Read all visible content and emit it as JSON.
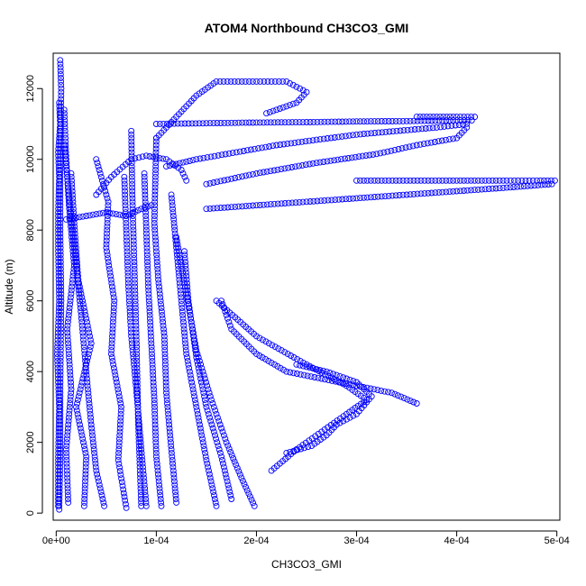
{
  "chart_data": {
    "type": "scatter",
    "title": "ATOM4 Northbound CH3CO3_GMI",
    "xlabel": "CH3CO3_GMI",
    "ylabel": "Altitude (m)",
    "xlim": [
      -3e-06,
      0.000503
    ],
    "ylim": [
      -200,
      13000
    ],
    "xticks": [
      0,
      0.0001,
      0.0002,
      0.0003,
      0.0004,
      0.0005
    ],
    "xtick_labels": [
      "0e+00",
      "1e-04",
      "2e-04",
      "3e-04",
      "4e-04",
      "5e-04"
    ],
    "yticks": [
      0,
      2000,
      4000,
      6000,
      8000,
      10000,
      12000
    ],
    "ytick_labels": [
      "0",
      "2000",
      "4000",
      "6000",
      "8000",
      "10000",
      "12000"
    ],
    "marker": "open-circle",
    "color": "#0000ff",
    "grid": false,
    "series": [
      {
        "x": [
          2e-06,
          2e-06,
          3e-06,
          1e-06,
          3e-06,
          2e-06,
          2e-06,
          3e-06,
          2e-06,
          4e-06,
          3e-06
        ],
        "y": [
          200,
          1500,
          3000,
          4500,
          6000,
          7500,
          8500,
          9500,
          10200,
          11000,
          11600
        ]
      },
      {
        "x": [
          3e-06,
          4e-06,
          4e-06,
          5e-06,
          4e-06,
          4e-06,
          5e-06,
          4e-06
        ],
        "y": [
          100,
          1500,
          3500,
          6000,
          8000,
          10000,
          12000,
          12800
        ]
      },
      {
        "x": [
          1.2e-05,
          1e-05,
          1.5e-05,
          1.1e-05,
          1.8e-05,
          1.3e-05,
          1e-05,
          8e-06
        ],
        "y": [
          300,
          1800,
          3500,
          5200,
          7000,
          8600,
          10000,
          11400
        ]
      },
      {
        "x": [
          4.8e-05,
          4e-05,
          3.5e-05,
          3e-05,
          2.5e-05,
          2e-05,
          1.5e-05,
          1e-05,
          8e-06
        ],
        "y": [
          200,
          1200,
          2500,
          4000,
          5600,
          7000,
          8400,
          9800,
          10400
        ]
      },
      {
        "x": [
          2.8e-05,
          3e-05,
          2e-05,
          3.5e-05,
          2.2e-05,
          1.8e-05,
          1.5e-05
        ],
        "y": [
          200,
          1600,
          3000,
          4800,
          6600,
          8200,
          9600
        ]
      },
      {
        "x": [
          7e-05,
          6.2e-05,
          6.5e-05,
          5.5e-05,
          5.8e-05,
          5e-05,
          5.2e-05,
          4e-05
        ],
        "y": [
          150,
          1500,
          3000,
          4500,
          6000,
          7500,
          8800,
          10000
        ]
      },
      {
        "x": [
          9e-05,
          8.5e-05,
          8e-05,
          7.5e-05,
          7.2e-05,
          7e-05,
          6.8e-05
        ],
        "y": [
          200,
          1800,
          3500,
          5000,
          6500,
          8000,
          9500
        ]
      },
      {
        "x": [
          0.000105,
          0.0001,
          9.8e-05,
          9.5e-05,
          9.2e-05,
          9e-05,
          8.8e-05
        ],
        "y": [
          200,
          1600,
          3200,
          4800,
          6400,
          8000,
          9600
        ]
      },
      {
        "x": [
          0.00012,
          0.000115,
          0.00011,
          0.000108,
          0.000102,
          9.8e-05,
          0.0001
        ],
        "y": [
          300,
          1800,
          3400,
          5000,
          6600,
          8200,
          10600
        ]
      },
      {
        "x": [
          0.00016,
          0.00015,
          0.00014,
          0.00013,
          0.000125,
          0.00012,
          0.000115
        ],
        "y": [
          200,
          1500,
          3000,
          4500,
          6000,
          7500,
          9000
        ]
      },
      {
        "x": [
          0.000198,
          0.000185,
          0.00017,
          0.000155,
          0.00014,
          0.00013,
          0.00012
        ],
        "y": [
          200,
          1000,
          2000,
          3200,
          4600,
          6200,
          7800
        ]
      },
      {
        "x": [
          0.000175,
          0.000165,
          0.00015,
          0.00014,
          0.000132,
          0.000128
        ],
        "y": [
          400,
          1600,
          3000,
          4400,
          6000,
          7400
        ]
      },
      {
        "x": [
          0.000215,
          0.00024,
          0.000265,
          0.00029,
          0.00031,
          0.00029,
          0.00025,
          0.0002,
          0.00016
        ],
        "y": [
          1200,
          1800,
          2300,
          2800,
          3200,
          3600,
          4200,
          5000,
          6000
        ]
      },
      {
        "x": [
          0.00036,
          0.000335,
          0.0003,
          0.000265,
          0.00023,
          0.0002,
          0.000175,
          0.000165
        ],
        "y": [
          3100,
          3400,
          3600,
          3800,
          4000,
          4500,
          5200,
          6000
        ]
      },
      {
        "x": [
          0.00023,
          0.000255,
          0.00027,
          0.00028,
          0.0003,
          0.000315,
          0.0003,
          0.00027,
          0.00024
        ],
        "y": [
          1700,
          1900,
          2200,
          2500,
          2800,
          3300,
          3700,
          4000,
          4200
        ]
      },
      {
        "x": [
          0.0001,
          0.00015,
          0.0002,
          0.00025,
          0.0003,
          0.00035,
          0.0004,
          0.000415
        ],
        "y": [
          11000,
          11020,
          11040,
          11050,
          11070,
          11080,
          11100,
          11100
        ]
      },
      {
        "x": [
          0.00036,
          0.00038,
          0.0004,
          0.000418
        ],
        "y": [
          11200,
          11200,
          11200,
          11200
        ]
      },
      {
        "x": [
          0.00011,
          0.00014,
          0.00018,
          0.00022,
          0.00026,
          0.0003,
          0.00034,
          0.00038,
          0.00041
        ],
        "y": [
          9800,
          10000,
          10200,
          10400,
          10550,
          10700,
          10800,
          10900,
          11000
        ]
      },
      {
        "x": [
          0.00015,
          0.0002,
          0.00026,
          0.00032,
          0.00036,
          0.0004,
          0.00041
        ],
        "y": [
          9300,
          9600,
          9900,
          10150,
          10400,
          10600,
          10900
        ]
      },
      {
        "x": [
          0.0003,
          0.00035,
          0.0004,
          0.00045,
          0.00048,
          0.000498
        ],
        "y": [
          9400,
          9400,
          9400,
          9400,
          9400,
          9400
        ]
      },
      {
        "x": [
          0.00015,
          0.0002,
          0.00025,
          0.0003,
          0.00035,
          0.0004,
          0.00045,
          0.000495
        ],
        "y": [
          8600,
          8700,
          8800,
          8900,
          9000,
          9100,
          9200,
          9300
        ]
      },
      {
        "x": [
          0.0001,
          0.00012,
          0.00014,
          0.00016,
          0.0002,
          0.00023,
          0.00025,
          0.00024,
          0.00021
        ],
        "y": [
          10600,
          11200,
          11800,
          12200,
          12200,
          12200,
          11900,
          11600,
          11300
        ]
      },
      {
        "x": [
          4e-05,
          5.5e-05,
          7.5e-05,
          9e-05,
          0.00011,
          0.000125,
          0.00013
        ],
        "y": [
          9000,
          9500,
          10000,
          10100,
          10000,
          9700,
          9400
        ]
      },
      {
        "x": [
          1e-05,
          3e-05,
          5e-05,
          7e-05,
          8.5e-05,
          9.5e-05
        ],
        "y": [
          8300,
          8400,
          8500,
          8400,
          8600,
          8700
        ]
      },
      {
        "x": [
          8.5e-05,
          8.2e-05,
          8e-05,
          7.8e-05,
          7.6e-05,
          7.5e-05
        ],
        "y": [
          200,
          2500,
          5000,
          7000,
          9000,
          10800
        ]
      }
    ]
  }
}
